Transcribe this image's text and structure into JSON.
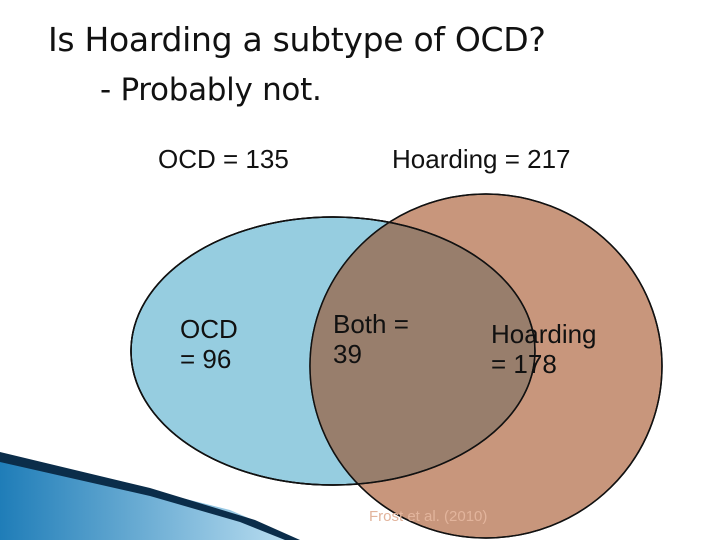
{
  "title": "Is Hoarding a subtype of OCD?",
  "subtitle": "- Probably not.",
  "totals": {
    "ocd": "OCD = 135",
    "hoarding": "Hoarding = 217"
  },
  "regions": {
    "ocd_only_line1": "OCD",
    "ocd_only_line2": "= 96",
    "both_line1": "Both =",
    "both_line2": "39",
    "hoarding_only_line1": "Hoarding",
    "hoarding_only_line2": "= 178"
  },
  "citation": "Frost et al. (2010)",
  "colors": {
    "ocd_circle": "#96cde0",
    "hoarding_circle": "#c8967c",
    "overlap": "#987e6c",
    "outline": "#111111"
  }
}
